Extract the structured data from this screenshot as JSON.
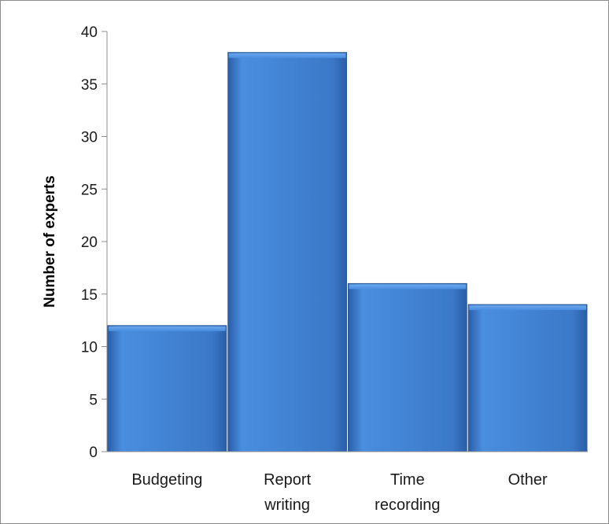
{
  "chart_data": {
    "type": "bar",
    "title": "",
    "xlabel": "",
    "ylabel": "Number of experts",
    "categories": [
      [
        "Budgeting"
      ],
      [
        "Report",
        "writing"
      ],
      [
        "Time",
        "recording"
      ],
      [
        "Other"
      ]
    ],
    "values": [
      12,
      38,
      16,
      14
    ],
    "ylim": [
      0,
      40
    ],
    "yticks": [
      "0",
      "5",
      "10",
      "15",
      "20",
      "25",
      "30",
      "35",
      "40"
    ],
    "grid": false,
    "legend": "none",
    "colors": {
      "bar_light": "#4a8ee0",
      "bar_mid": "#3b78c8",
      "bar_dark": "#2a5ea8",
      "bar_top": "#6aa6ec",
      "bar_edge": "#2c5a98",
      "axis": "#8c8c8c"
    }
  }
}
